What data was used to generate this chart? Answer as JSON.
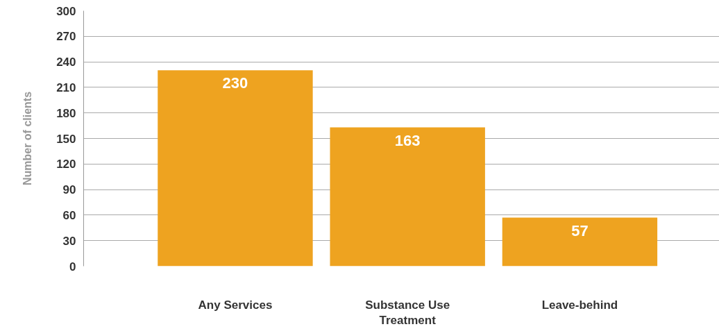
{
  "chart_data": {
    "type": "bar",
    "ylabel": "Number of clients",
    "categories": [
      "Any Services",
      "Substance Use Treatment",
      "Leave-behind"
    ],
    "values": [
      230,
      163,
      57
    ],
    "color": "#eea320",
    "ylim": [
      0,
      300
    ],
    "yticks": [
      0,
      30,
      60,
      90,
      120,
      150,
      180,
      210,
      240,
      270,
      300
    ],
    "grid": "y",
    "data_labels": true
  }
}
